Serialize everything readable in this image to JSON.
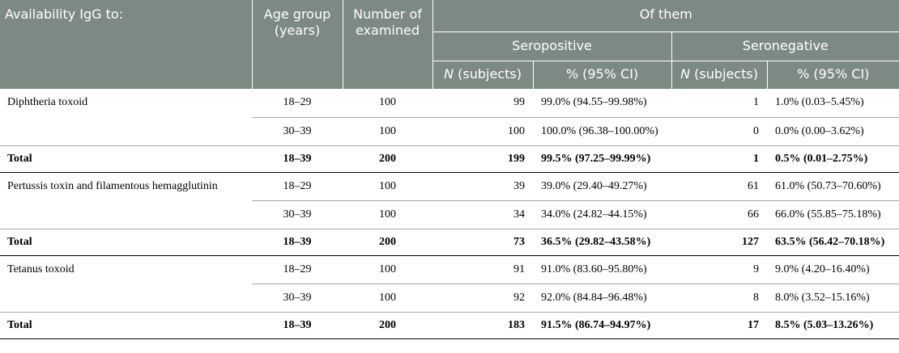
{
  "header": {
    "col_availability": "Availability IgG to:",
    "col_age": "Age group (years)",
    "col_examined": "Number of examined",
    "of_them": "Of them",
    "seropositive": "Seropositive",
    "seronegative": "Seronegative",
    "n_italic": "N",
    "n_rest": " (subjects)",
    "pct_ci": "% (95% CI)"
  },
  "groups": [
    {
      "name": "Diphtheria toxoid",
      "rows": [
        {
          "age": "18–29",
          "examined": "100",
          "pos_n": "99",
          "pos_pct": "99.0% (94.55–99.98%)",
          "neg_n": "1",
          "neg_pct": "1.0% (0.03–5.45%)"
        },
        {
          "age": "30–39",
          "examined": "100",
          "pos_n": "100",
          "pos_pct": "100.0% (96.38–100.00%)",
          "neg_n": "0",
          "neg_pct": "0.0% (0.00–3.62%)"
        }
      ],
      "total": {
        "label": "Total",
        "age": "18–39",
        "examined": "200",
        "pos_n": "199",
        "pos_pct": "99.5% (97.25–99.99%)",
        "neg_n": "1",
        "neg_pct": "0.5% (0.01–2.75%)"
      }
    },
    {
      "name": "Pertussis toxin and filamentous hemagglutinin",
      "rows": [
        {
          "age": "18–29",
          "examined": "100",
          "pos_n": "39",
          "pos_pct": "39.0% (29.40–49.27%)",
          "neg_n": "61",
          "neg_pct": "61.0% (50.73–70.60%)"
        },
        {
          "age": "30–39",
          "examined": "100",
          "pos_n": "34",
          "pos_pct": "34.0% (24.82–44.15%)",
          "neg_n": "66",
          "neg_pct": "66.0% (55.85–75.18%)"
        }
      ],
      "total": {
        "label": "Total",
        "age": "18–39",
        "examined": "200",
        "pos_n": "73",
        "pos_pct": "36.5% (29.82–43.58%)",
        "neg_n": "127",
        "neg_pct": "63.5% (56.42–70.18%)"
      }
    },
    {
      "name": "Tetanus toxoid",
      "rows": [
        {
          "age": "18–29",
          "examined": "100",
          "pos_n": "91",
          "pos_pct": "91.0% (83.60–95.80%)",
          "neg_n": "9",
          "neg_pct": "9.0% (4.20–16.40%)"
        },
        {
          "age": "30–39",
          "examined": "100",
          "pos_n": "92",
          "pos_pct": "92.0% (84.84–96.48%)",
          "neg_n": "8",
          "neg_pct": "8.0% (3.52–15.16%)"
        }
      ],
      "total": {
        "label": "Total",
        "age": "18–39",
        "examined": "200",
        "pos_n": "183",
        "pos_pct": "91.5% (86.74–94.97%)",
        "neg_n": "17",
        "neg_pct": "8.5% (5.03–13.26%)"
      }
    }
  ],
  "colors": {
    "header_bg": "#7d8a84",
    "header_text": "#ffffff"
  }
}
